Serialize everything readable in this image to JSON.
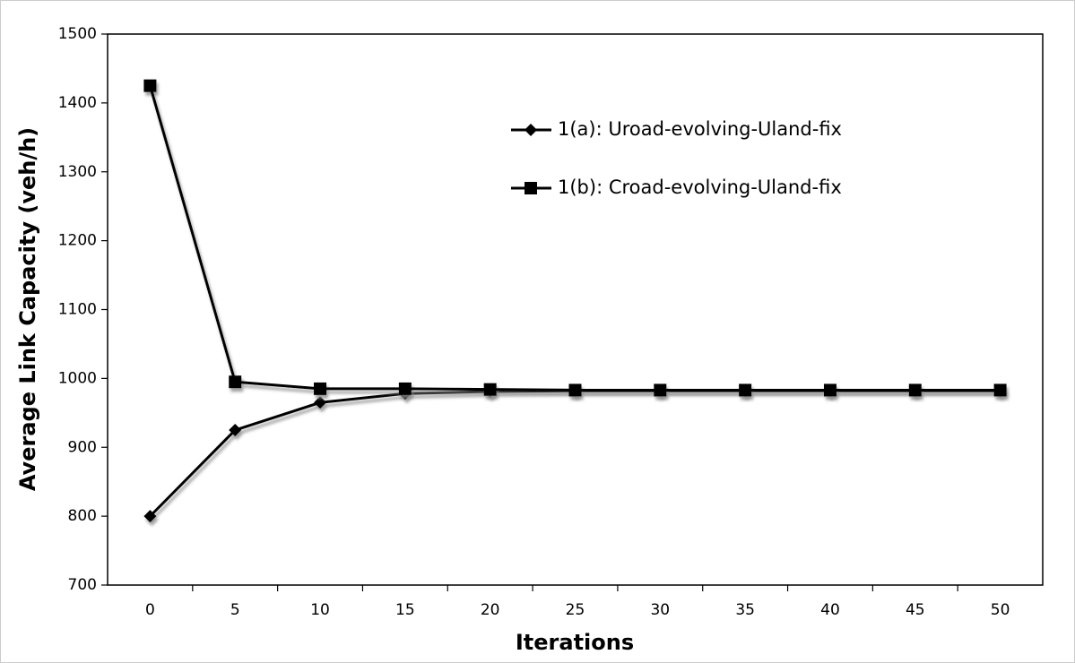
{
  "chart_data": {
    "type": "line",
    "xlabel": "Iterations",
    "ylabel": "Average Link Capacity (veh/h)",
    "categories": [
      "0",
      "5",
      "10",
      "15",
      "20",
      "25",
      "30",
      "35",
      "40",
      "45",
      "50"
    ],
    "series": [
      {
        "name": "1(a): Uroad-evolving-Uland-fix",
        "color": "#000000",
        "marker": "diamond",
        "values": [
          800,
          925,
          965,
          978,
          981,
          982,
          982,
          982,
          982,
          982,
          982
        ]
      },
      {
        "name": "1(b): Croad-evolving-Uland-fix",
        "color": "#000000",
        "marker": "square",
        "values": [
          1425,
          995,
          985,
          985,
          984,
          983,
          983,
          983,
          983,
          983,
          983
        ]
      }
    ],
    "ylim": [
      700,
      1500
    ],
    "yticks": [
      700,
      800,
      900,
      1000,
      1100,
      1200,
      1300,
      1400,
      1500
    ],
    "grid": false,
    "legend": "upper right"
  }
}
